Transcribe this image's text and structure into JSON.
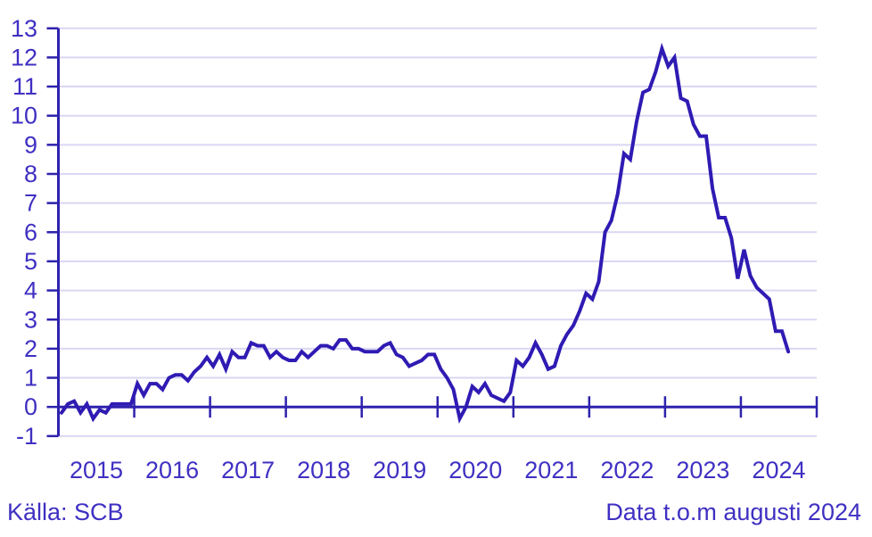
{
  "chart_data": {
    "type": "line",
    "title": "",
    "xlabel": "",
    "ylabel": "",
    "grid": "horizontal",
    "legend": "none",
    "ylim": [
      -1,
      13
    ],
    "y_ticks": [
      -1,
      0,
      1,
      2,
      3,
      4,
      5,
      6,
      7,
      8,
      9,
      10,
      11,
      12,
      13
    ],
    "x_years": [
      2015,
      2025
    ],
    "x_tick_labels": [
      "2015",
      "2016",
      "2017",
      "2018",
      "2019",
      "2020",
      "2021",
      "2022",
      "2023",
      "2024"
    ],
    "series": [
      {
        "start_month": "2015-01",
        "end_month": "2024-08",
        "values": [
          -0.2,
          0.1,
          0.2,
          -0.2,
          0.1,
          -0.4,
          -0.1,
          -0.2,
          0.1,
          0.1,
          0.1,
          0.1,
          0.8,
          0.4,
          0.8,
          0.8,
          0.6,
          1.0,
          1.1,
          1.1,
          0.9,
          1.2,
          1.4,
          1.7,
          1.4,
          1.8,
          1.3,
          1.9,
          1.7,
          1.7,
          2.2,
          2.1,
          2.1,
          1.7,
          1.9,
          1.7,
          1.6,
          1.6,
          1.9,
          1.7,
          1.9,
          2.1,
          2.1,
          2.0,
          2.3,
          2.3,
          2.0,
          2.0,
          1.9,
          1.9,
          1.9,
          2.1,
          2.2,
          1.8,
          1.7,
          1.4,
          1.5,
          1.6,
          1.8,
          1.8,
          1.3,
          1.0,
          0.6,
          -0.4,
          0.0,
          0.7,
          0.5,
          0.8,
          0.4,
          0.3,
          0.2,
          0.5,
          1.6,
          1.4,
          1.7,
          2.2,
          1.8,
          1.3,
          1.4,
          2.1,
          2.5,
          2.8,
          3.3,
          3.9,
          3.7,
          4.3,
          6.0,
          6.4,
          7.3,
          8.7,
          8.5,
          9.8,
          10.8,
          10.9,
          11.5,
          12.3,
          11.7,
          12.0,
          10.6,
          10.5,
          9.7,
          9.3,
          9.3,
          7.5,
          6.5,
          6.5,
          5.8,
          4.4,
          5.4,
          4.5,
          4.1,
          3.9,
          3.7,
          2.6,
          2.6,
          1.9
        ]
      }
    ],
    "colors": {
      "line": "#2f1bb3",
      "axis": "#2e22ad",
      "labels": "#3f30c2",
      "gridline": "#dad7f3",
      "background": "#ffffff"
    }
  },
  "footer": {
    "source": "Källa: SCB",
    "note": "Data t.o.m augusti 2024"
  }
}
